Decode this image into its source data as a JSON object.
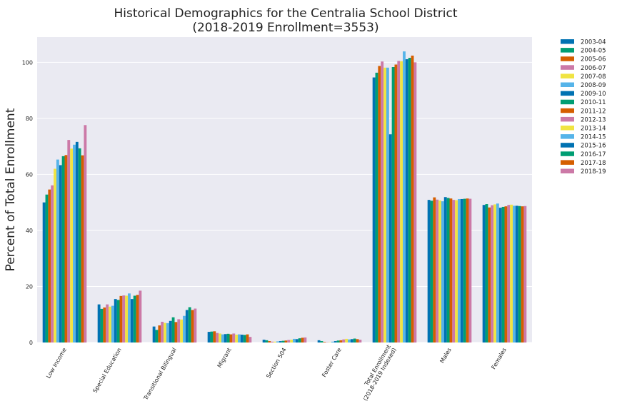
{
  "chart_data": {
    "type": "bar",
    "title": "Historical Demographics for the Centralia School District",
    "subtitle": "(2018-2019 Enrollment=3553)",
    "ylabel": "Percent of Total Enrollment",
    "xlabel": "",
    "ylim": [
      0,
      109
    ],
    "yticks": [
      0,
      20,
      40,
      60,
      80,
      100
    ],
    "grid": true,
    "legend_position": "outside right",
    "categories": [
      "Low Income",
      "Special Education",
      "Transitional Bilingual",
      "Migrant",
      "Section 504",
      "Foster Care",
      "Total Enrollment\n(2018-2019 Indexed)",
      "Males",
      "Females"
    ],
    "series": [
      {
        "name": "2003-04",
        "color": "#0072B2",
        "values": [
          50.0,
          13.6,
          5.7,
          3.8,
          1.0,
          0.8,
          94.6,
          50.9,
          49.1
        ]
      },
      {
        "name": "2004-05",
        "color": "#009E73",
        "values": [
          52.8,
          12.0,
          4.5,
          3.9,
          0.8,
          0.5,
          96.3,
          50.6,
          49.4
        ]
      },
      {
        "name": "2005-06",
        "color": "#D55E00",
        "values": [
          54.6,
          12.5,
          6.1,
          4.0,
          0.5,
          0.2,
          98.7,
          51.8,
          48.2
        ]
      },
      {
        "name": "2006-07",
        "color": "#CC79A7",
        "values": [
          56.1,
          13.6,
          7.4,
          3.4,
          0.3,
          0.1,
          100.3,
          51.0,
          49.0
        ]
      },
      {
        "name": "2007-08",
        "color": "#F0E442",
        "values": [
          62.0,
          12.8,
          7.0,
          3.2,
          0.3,
          0.1,
          98.1,
          50.7,
          49.3
        ]
      },
      {
        "name": "2008-09",
        "color": "#56B4E9",
        "values": [
          65.3,
          13.1,
          6.9,
          2.9,
          0.4,
          0.3,
          98.1,
          50.4,
          49.6
        ]
      },
      {
        "name": "2009-10",
        "color": "#0072B2",
        "values": [
          63.3,
          15.5,
          7.7,
          3.0,
          0.5,
          0.5,
          74.3,
          51.9,
          48.1
        ]
      },
      {
        "name": "2010-11",
        "color": "#009E73",
        "values": [
          66.5,
          15.2,
          9.0,
          3.1,
          0.6,
          0.7,
          98.3,
          51.6,
          48.4
        ]
      },
      {
        "name": "2011-12",
        "color": "#D55E00",
        "values": [
          66.9,
          16.6,
          7.3,
          2.9,
          0.7,
          0.8,
          99.2,
          51.4,
          48.6
        ]
      },
      {
        "name": "2012-13",
        "color": "#CC79A7",
        "values": [
          72.3,
          16.8,
          8.3,
          3.2,
          0.9,
          1.1,
          100.5,
          50.9,
          49.1
        ]
      },
      {
        "name": "2013-14",
        "color": "#F0E442",
        "values": [
          69.2,
          16.7,
          8.2,
          2.8,
          1.0,
          1.3,
          100.4,
          50.8,
          49.2
        ]
      },
      {
        "name": "2014-15",
        "color": "#56B4E9",
        "values": [
          70.6,
          17.5,
          9.5,
          2.9,
          1.3,
          1.1,
          103.9,
          51.2,
          48.8
        ]
      },
      {
        "name": "2015-16",
        "color": "#0072B2",
        "values": [
          71.6,
          15.5,
          11.6,
          2.8,
          1.2,
          1.2,
          101.1,
          51.2,
          48.8
        ]
      },
      {
        "name": "2016-17",
        "color": "#009E73",
        "values": [
          69.3,
          16.7,
          12.6,
          2.7,
          1.5,
          1.4,
          101.6,
          51.3,
          48.7
        ]
      },
      {
        "name": "2017-18",
        "color": "#D55E00",
        "values": [
          66.8,
          17.0,
          11.6,
          2.9,
          1.7,
          1.2,
          102.4,
          51.4,
          48.6
        ]
      },
      {
        "name": "2018-19",
        "color": "#CC79A7",
        "values": [
          77.6,
          18.5,
          12.1,
          2.0,
          1.8,
          1.0,
          100.0,
          51.3,
          48.7
        ]
      }
    ]
  },
  "style": {
    "plot_background": "#EAEAF2",
    "grid_color": "#FFFFFF",
    "text_color": "#222222"
  }
}
